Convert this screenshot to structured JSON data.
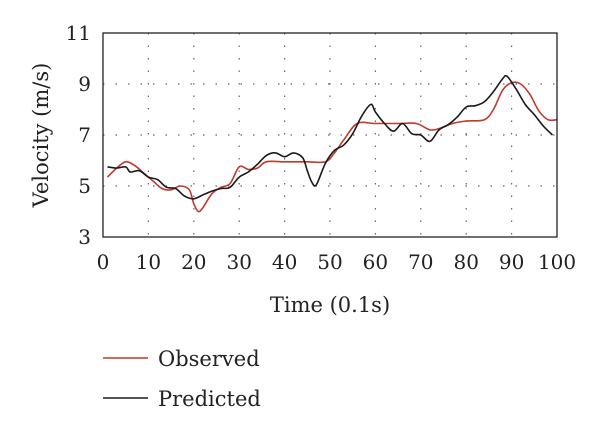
{
  "chart_data": {
    "type": "line",
    "title": "",
    "xlabel": "Time (0.1s)",
    "ylabel": "Velocity (m/s)",
    "xlim": [
      0,
      100
    ],
    "ylim": [
      3,
      11
    ],
    "xticks": [
      0,
      10,
      20,
      30,
      40,
      50,
      60,
      70,
      80,
      90,
      100
    ],
    "yticks": [
      3,
      5,
      7,
      9,
      11
    ],
    "grid": "dotted",
    "legend_position": "bottom",
    "series": [
      {
        "name": "Observed",
        "color": "#c0392b",
        "points": [
          [
            1,
            5.35
          ],
          [
            3,
            5.7
          ],
          [
            5,
            5.95
          ],
          [
            7,
            5.8
          ],
          [
            9,
            5.5
          ],
          [
            11,
            5.2
          ],
          [
            13,
            4.9
          ],
          [
            15,
            4.85
          ],
          [
            17,
            5.0
          ],
          [
            19,
            4.85
          ],
          [
            20,
            4.3
          ],
          [
            21,
            4.0
          ],
          [
            22,
            4.15
          ],
          [
            24,
            4.7
          ],
          [
            26,
            4.95
          ],
          [
            28,
            5.1
          ],
          [
            30,
            5.75
          ],
          [
            32,
            5.65
          ],
          [
            34,
            5.7
          ],
          [
            36,
            5.95
          ],
          [
            40,
            5.95
          ],
          [
            45,
            5.95
          ],
          [
            49,
            5.95
          ],
          [
            51,
            6.3
          ],
          [
            53,
            6.8
          ],
          [
            56,
            7.45
          ],
          [
            60,
            7.45
          ],
          [
            65,
            7.45
          ],
          [
            69,
            7.45
          ],
          [
            72,
            7.2
          ],
          [
            74,
            7.25
          ],
          [
            77,
            7.45
          ],
          [
            80,
            7.55
          ],
          [
            84,
            7.6
          ],
          [
            86,
            8.0
          ],
          [
            88,
            8.75
          ],
          [
            90,
            9.05
          ],
          [
            92,
            9.0
          ],
          [
            94,
            8.6
          ],
          [
            96,
            7.95
          ],
          [
            98,
            7.6
          ],
          [
            100,
            7.6
          ]
        ]
      },
      {
        "name": "Predicted",
        "color": "#1a1a1a",
        "points": [
          [
            1,
            5.75
          ],
          [
            3,
            5.7
          ],
          [
            5,
            5.75
          ],
          [
            6,
            5.55
          ],
          [
            8,
            5.6
          ],
          [
            10,
            5.35
          ],
          [
            12,
            5.25
          ],
          [
            14,
            4.95
          ],
          [
            16,
            4.9
          ],
          [
            18,
            4.6
          ],
          [
            20,
            4.5
          ],
          [
            22,
            4.65
          ],
          [
            24,
            4.8
          ],
          [
            26,
            4.9
          ],
          [
            28,
            4.95
          ],
          [
            30,
            5.35
          ],
          [
            32,
            5.55
          ],
          [
            34,
            5.85
          ],
          [
            36,
            6.2
          ],
          [
            38,
            6.3
          ],
          [
            40,
            6.15
          ],
          [
            42,
            6.3
          ],
          [
            44,
            6.1
          ],
          [
            45,
            5.6
          ],
          [
            46,
            5.15
          ],
          [
            47,
            5.05
          ],
          [
            49,
            5.9
          ],
          [
            51,
            6.4
          ],
          [
            53,
            6.6
          ],
          [
            55,
            7.05
          ],
          [
            57,
            7.75
          ],
          [
            59,
            8.2
          ],
          [
            60,
            7.9
          ],
          [
            62,
            7.45
          ],
          [
            64,
            7.15
          ],
          [
            66,
            7.45
          ],
          [
            68,
            7.05
          ],
          [
            70,
            7.0
          ],
          [
            72,
            6.75
          ],
          [
            74,
            7.2
          ],
          [
            76,
            7.4
          ],
          [
            78,
            7.7
          ],
          [
            80,
            8.1
          ],
          [
            82,
            8.15
          ],
          [
            84,
            8.3
          ],
          [
            86,
            8.7
          ],
          [
            88,
            9.2
          ],
          [
            89,
            9.3
          ],
          [
            91,
            8.8
          ],
          [
            93,
            8.2
          ],
          [
            95,
            7.8
          ],
          [
            97,
            7.35
          ],
          [
            99,
            7.0
          ]
        ]
      }
    ]
  }
}
